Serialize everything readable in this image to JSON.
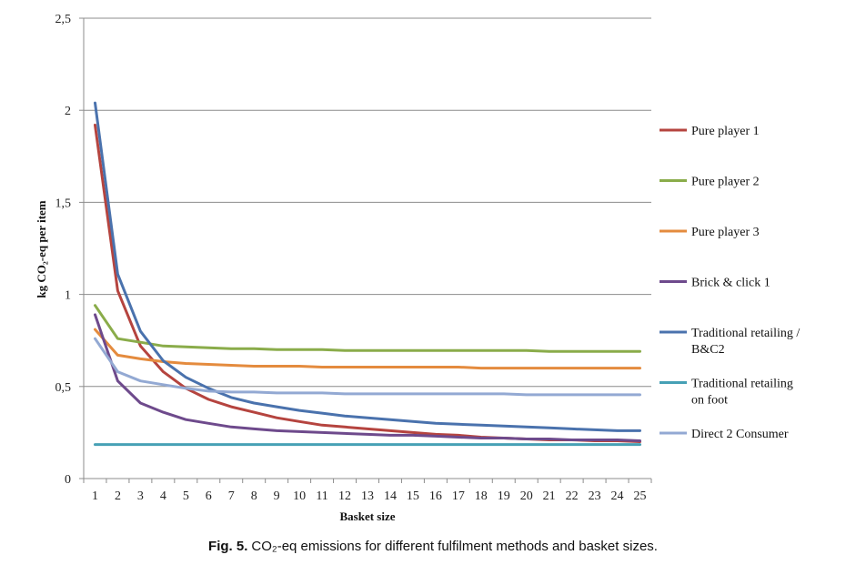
{
  "chart_data": {
    "type": "line",
    "x": [
      1,
      2,
      3,
      4,
      5,
      6,
      7,
      8,
      9,
      10,
      11,
      12,
      13,
      14,
      15,
      16,
      17,
      18,
      19,
      20,
      21,
      22,
      23,
      24,
      25
    ],
    "xlabel": "Basket size",
    "ylabel": "kg CO₂-eq per item",
    "ylim": [
      0,
      2.5
    ],
    "yticks": [
      "0",
      "0,5",
      "1",
      "1,5",
      "2",
      "2,5"
    ],
    "grid": "horizontal",
    "legend_position": "right",
    "series": [
      {
        "name": "Pure player 1",
        "color": "#b5443f",
        "legend_lines": [
          "Pure player 1"
        ],
        "values": [
          1.92,
          1.02,
          0.72,
          0.58,
          0.49,
          0.43,
          0.39,
          0.36,
          0.33,
          0.31,
          0.29,
          0.28,
          0.27,
          0.26,
          0.25,
          0.24,
          0.235,
          0.225,
          0.22,
          0.215,
          0.21,
          0.21,
          0.205,
          0.205,
          0.2
        ]
      },
      {
        "name": "Pure player 2",
        "color": "#8aac4a",
        "legend_lines": [
          "Pure player 2"
        ],
        "values": [
          0.94,
          0.76,
          0.74,
          0.72,
          0.715,
          0.71,
          0.705,
          0.705,
          0.7,
          0.7,
          0.7,
          0.695,
          0.695,
          0.695,
          0.695,
          0.695,
          0.695,
          0.695,
          0.695,
          0.695,
          0.69,
          0.69,
          0.69,
          0.69,
          0.69
        ]
      },
      {
        "name": "Pure player 3",
        "color": "#e48b3e",
        "legend_lines": [
          "Pure player 3"
        ],
        "values": [
          0.81,
          0.67,
          0.65,
          0.635,
          0.625,
          0.62,
          0.615,
          0.61,
          0.61,
          0.61,
          0.605,
          0.605,
          0.605,
          0.605,
          0.605,
          0.605,
          0.605,
          0.6,
          0.6,
          0.6,
          0.6,
          0.6,
          0.6,
          0.6,
          0.6
        ]
      },
      {
        "name": "Brick & click 1",
        "color": "#6e4a8c",
        "legend_lines": [
          "Brick & click 1"
        ],
        "values": [
          0.89,
          0.53,
          0.41,
          0.36,
          0.32,
          0.3,
          0.28,
          0.27,
          0.26,
          0.255,
          0.25,
          0.245,
          0.24,
          0.235,
          0.235,
          0.23,
          0.225,
          0.22,
          0.22,
          0.215,
          0.215,
          0.21,
          0.21,
          0.21,
          0.205
        ]
      },
      {
        "name": "Traditional retailing / B&C2",
        "color": "#4a72ad",
        "legend_lines": [
          "Traditional retailing /",
          "B&C2"
        ],
        "values": [
          2.04,
          1.11,
          0.8,
          0.64,
          0.55,
          0.49,
          0.44,
          0.41,
          0.39,
          0.37,
          0.355,
          0.34,
          0.33,
          0.32,
          0.31,
          0.3,
          0.295,
          0.29,
          0.285,
          0.28,
          0.275,
          0.27,
          0.265,
          0.26,
          0.26
        ]
      },
      {
        "name": "Traditional retailing on foot",
        "color": "#46a0b5",
        "legend_lines": [
          "Traditional retailing",
          "on foot"
        ],
        "values": [
          0.185,
          0.185,
          0.185,
          0.185,
          0.185,
          0.185,
          0.185,
          0.185,
          0.185,
          0.185,
          0.185,
          0.185,
          0.185,
          0.185,
          0.185,
          0.185,
          0.185,
          0.185,
          0.185,
          0.185,
          0.185,
          0.185,
          0.185,
          0.185,
          0.185
        ]
      },
      {
        "name": "Direct 2 Consumer",
        "color": "#93a9d3",
        "legend_lines": [
          "Direct 2 Consumer"
        ],
        "values": [
          0.76,
          0.58,
          0.53,
          0.51,
          0.49,
          0.475,
          0.47,
          0.47,
          0.465,
          0.465,
          0.465,
          0.46,
          0.46,
          0.46,
          0.46,
          0.46,
          0.46,
          0.46,
          0.46,
          0.455,
          0.455,
          0.455,
          0.455,
          0.455,
          0.455
        ]
      }
    ]
  },
  "caption": {
    "label": "Fig. 5.",
    "text": "CO₂-eq emissions for different fulfilment methods and basket sizes."
  }
}
